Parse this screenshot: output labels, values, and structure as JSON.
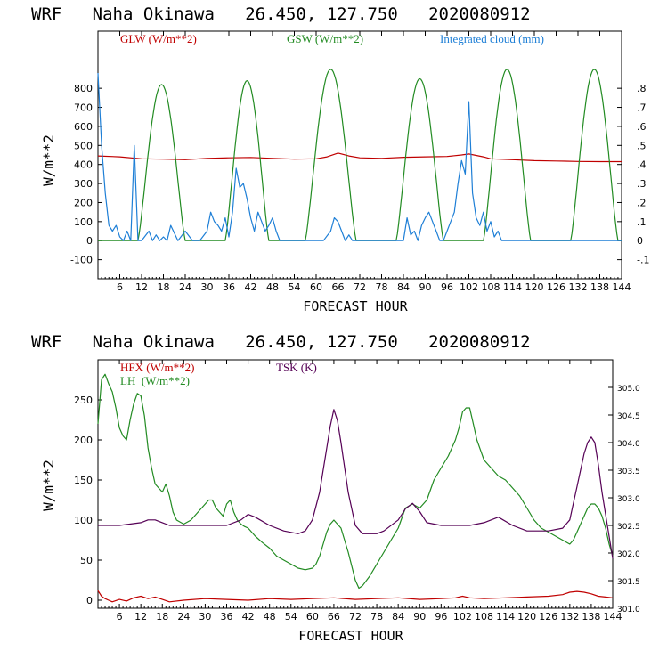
{
  "colors": {
    "glw": "#c00000",
    "gsw": "#228b22",
    "cloud": "#1e7fd6",
    "hfx": "#c00000",
    "lh": "#228b22",
    "tsk": "#550055",
    "axis": "#000000"
  },
  "chart_data": [
    {
      "type": "line",
      "title": "WRF   Naha Okinawa   26.450, 127.750   2020080912",
      "xlabel": "FORECAST HOUR",
      "ylabel": "W/m**2",
      "xlim": [
        0,
        144
      ],
      "ylim": [
        -200,
        1100
      ],
      "y2lim": [
        -0.2,
        1.1
      ],
      "xticks": [
        "6",
        "12",
        "18",
        "24",
        "30",
        "36",
        "42",
        "48",
        "54",
        "60",
        "66",
        "72",
        "78",
        "84",
        "90",
        "96",
        "102",
        "108",
        "114",
        "120",
        "126",
        "132",
        "138",
        "144"
      ],
      "yticks": [
        "800",
        "700",
        "600",
        "500",
        "400",
        "300",
        "200",
        "100",
        "0",
        "-100"
      ],
      "y2ticks": [
        ".8",
        ".7",
        ".6",
        ".5",
        ".4",
        ".3",
        ".2",
        ".1",
        "0",
        "-.1"
      ],
      "series": [
        {
          "name": "GLW (W/m**2)",
          "axis": "left",
          "x": [
            0,
            6,
            12,
            18,
            24,
            30,
            36,
            42,
            48,
            54,
            60,
            63,
            66,
            69,
            72,
            78,
            84,
            90,
            96,
            100,
            102,
            106,
            108,
            114,
            120,
            126,
            132,
            138,
            144
          ],
          "y": [
            445,
            440,
            430,
            428,
            425,
            432,
            435,
            437,
            432,
            428,
            430,
            440,
            460,
            445,
            435,
            432,
            438,
            440,
            442,
            450,
            455,
            440,
            430,
            425,
            420,
            418,
            416,
            415,
            415
          ]
        },
        {
          "name": "GSW (W/m**2)",
          "axis": "left",
          "daylight": true,
          "days": [
            {
              "rise": 11,
              "set": 24,
              "peak": 820
            },
            {
              "rise": 35,
              "set": 47,
              "peak": 840
            },
            {
              "rise": 57,
              "set": 71,
              "peak": 900
            },
            {
              "rise": 82,
              "set": 95,
              "peak": 850
            },
            {
              "rise": 106,
              "set": 119,
              "peak": 900
            },
            {
              "rise": 130,
              "set": 143,
              "peak": 900
            }
          ]
        },
        {
          "name": "Integrated cloud (mm)",
          "axis": "right",
          "x": [
            0,
            1,
            2,
            3,
            4,
            5,
            6,
            7,
            8,
            9,
            10,
            11,
            12,
            14,
            15,
            16,
            17,
            18,
            19,
            20,
            22,
            24,
            26,
            28,
            30,
            31,
            32,
            33,
            34,
            35,
            36,
            37,
            38,
            39,
            40,
            41,
            42,
            43,
            44,
            45,
            46,
            47,
            48,
            49,
            50,
            60,
            62,
            64,
            65,
            66,
            67,
            68,
            69,
            70,
            84,
            85,
            86,
            87,
            88,
            89,
            90,
            91,
            92,
            93,
            94,
            95,
            96,
            97,
            98,
            99,
            100,
            101,
            102,
            103,
            104,
            105,
            106,
            107,
            108,
            109,
            110,
            111,
            144
          ],
          "y": [
            0.88,
            0.5,
            0.25,
            0.08,
            0.05,
            0.08,
            0.02,
            0.0,
            0.05,
            0.0,
            0.5,
            0.0,
            0.0,
            0.05,
            0.0,
            0.03,
            0.0,
            0.02,
            0.0,
            0.08,
            0.0,
            0.05,
            0.0,
            0.0,
            0.05,
            0.15,
            0.1,
            0.08,
            0.05,
            0.12,
            0.02,
            0.15,
            0.38,
            0.28,
            0.3,
            0.22,
            0.12,
            0.05,
            0.15,
            0.1,
            0.05,
            0.08,
            0.12,
            0.05,
            0.0,
            0.0,
            0.0,
            0.05,
            0.12,
            0.1,
            0.05,
            0.0,
            0.03,
            0.0,
            0.0,
            0.12,
            0.03,
            0.05,
            0.0,
            0.08,
            0.12,
            0.15,
            0.1,
            0.05,
            0.0,
            0.0,
            0.05,
            0.1,
            0.15,
            0.3,
            0.42,
            0.35,
            0.73,
            0.25,
            0.12,
            0.08,
            0.15,
            0.05,
            0.1,
            0.02,
            0.05,
            0.0,
            0.0
          ]
        }
      ],
      "legend": [
        "GLW (W/m**2)",
        "GSW (W/m**2)",
        "Integrated cloud (mm)"
      ]
    },
    {
      "type": "line",
      "title": "WRF   Naha Okinawa   26.450, 127.750   2020080912",
      "xlabel": "FORECAST HOUR",
      "ylabel": "W/m**2",
      "xlim": [
        0,
        144
      ],
      "ylim": [
        -10,
        300
      ],
      "y2lim": [
        301.0,
        305.5
      ],
      "xticks": [
        "6",
        "12",
        "18",
        "24",
        "30",
        "36",
        "42",
        "48",
        "54",
        "60",
        "66",
        "72",
        "78",
        "84",
        "90",
        "96",
        "102",
        "108",
        "114",
        "120",
        "126",
        "132",
        "138",
        "144"
      ],
      "yticks": [
        "250",
        "200",
        "150",
        "100",
        "50",
        "0"
      ],
      "y2ticks": [
        "305.0",
        "304.5",
        "304.0",
        "303.5",
        "303.0",
        "302.5",
        "302.0",
        "301.5",
        "301.0"
      ],
      "series": [
        {
          "name": "HFX (W/m**2)",
          "axis": "left",
          "x": [
            0,
            1,
            2,
            3,
            4,
            6,
            8,
            10,
            12,
            14,
            16,
            18,
            20,
            24,
            30,
            36,
            42,
            48,
            54,
            60,
            66,
            72,
            78,
            84,
            90,
            96,
            100,
            102,
            104,
            108,
            114,
            120,
            126,
            130,
            132,
            134,
            136,
            138,
            140,
            142,
            144
          ],
          "y": [
            12,
            5,
            2,
            0,
            -2,
            1,
            -1,
            3,
            5,
            2,
            4,
            1,
            -2,
            0,
            2,
            1,
            0,
            2,
            1,
            2,
            3,
            1,
            2,
            3,
            1,
            2,
            3,
            5,
            3,
            2,
            3,
            4,
            5,
            7,
            10,
            11,
            10,
            8,
            5,
            4,
            3
          ]
        },
        {
          "name": "LH (W/m**2)",
          "axis": "left",
          "x": [
            0,
            1,
            2,
            3,
            4,
            5,
            6,
            7,
            8,
            9,
            10,
            11,
            12,
            13,
            14,
            15,
            16,
            17,
            18,
            19,
            20,
            21,
            22,
            24,
            26,
            28,
            30,
            31,
            32,
            33,
            34,
            35,
            36,
            37,
            38,
            39,
            40,
            41,
            42,
            44,
            46,
            48,
            50,
            52,
            54,
            56,
            58,
            60,
            61,
            62,
            63,
            64,
            65,
            66,
            67,
            68,
            70,
            72,
            73,
            74,
            76,
            78,
            80,
            82,
            84,
            86,
            88,
            90,
            92,
            94,
            96,
            98,
            99,
            100,
            101,
            102,
            103,
            104,
            105,
            106,
            108,
            110,
            112,
            114,
            116,
            118,
            120,
            122,
            124,
            126,
            128,
            130,
            132,
            133,
            134,
            135,
            136,
            137,
            138,
            139,
            140,
            141,
            142,
            143,
            144
          ],
          "y": [
            220,
            275,
            282,
            270,
            260,
            240,
            215,
            205,
            200,
            225,
            245,
            258,
            255,
            230,
            190,
            165,
            145,
            140,
            135,
            145,
            130,
            110,
            100,
            95,
            100,
            110,
            120,
            125,
            125,
            115,
            110,
            105,
            120,
            125,
            110,
            100,
            95,
            92,
            90,
            80,
            72,
            65,
            55,
            50,
            45,
            40,
            38,
            40,
            45,
            55,
            70,
            85,
            95,
            100,
            95,
            90,
            60,
            25,
            15,
            18,
            30,
            45,
            60,
            75,
            90,
            115,
            120,
            115,
            125,
            150,
            165,
            180,
            190,
            200,
            215,
            235,
            240,
            240,
            220,
            200,
            175,
            165,
            155,
            150,
            140,
            130,
            115,
            100,
            90,
            85,
            80,
            75,
            70,
            75,
            85,
            95,
            105,
            115,
            120,
            120,
            115,
            105,
            90,
            70,
            55
          ]
        },
        {
          "name": "TSK (K)",
          "axis": "right",
          "x": [
            0,
            6,
            12,
            14,
            16,
            18,
            20,
            22,
            24,
            30,
            36,
            40,
            42,
            44,
            48,
            52,
            56,
            58,
            60,
            62,
            63,
            64,
            65,
            66,
            67,
            68,
            70,
            72,
            74,
            76,
            78,
            80,
            84,
            86,
            88,
            90,
            92,
            96,
            100,
            102,
            104,
            108,
            112,
            116,
            120,
            126,
            130,
            132,
            133,
            134,
            135,
            136,
            137,
            138,
            139,
            140,
            141,
            142,
            143,
            144
          ],
          "y": [
            302.5,
            302.5,
            302.55,
            302.6,
            302.6,
            302.55,
            302.5,
            302.5,
            302.5,
            302.5,
            302.5,
            302.6,
            302.7,
            302.65,
            302.5,
            302.4,
            302.35,
            302.4,
            302.6,
            303.1,
            303.5,
            303.9,
            304.3,
            304.6,
            304.4,
            304.0,
            303.1,
            302.5,
            302.35,
            302.35,
            302.35,
            302.4,
            302.6,
            302.8,
            302.9,
            302.75,
            302.55,
            302.5,
            302.5,
            302.5,
            302.5,
            302.55,
            302.65,
            302.5,
            302.4,
            302.4,
            302.45,
            302.6,
            302.9,
            303.2,
            303.5,
            303.8,
            304.0,
            304.1,
            304.0,
            303.6,
            303.1,
            302.7,
            302.3,
            301.9
          ]
        }
      ],
      "legend": [
        "HFX (W/m**2)",
        "LH  (W/m**2)",
        "TSK (K)"
      ]
    }
  ]
}
